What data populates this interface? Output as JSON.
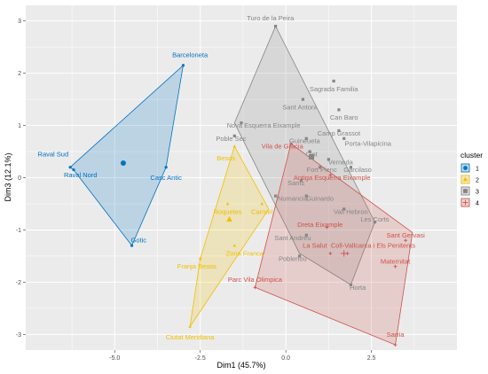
{
  "chart_data": {
    "type": "scatter",
    "title": "",
    "xlabel": "Dim1 (45.7%)",
    "ylabel": "Dim3 (12.1%)",
    "xlim": [
      -7.6,
      5.0
    ],
    "ylim": [
      -3.3,
      3.3
    ],
    "xticks": [
      -5.0,
      -2.5,
      0.0,
      2.5
    ],
    "xtick_labels": [
      "-5.0",
      "-2.5",
      "0.0",
      "2.5"
    ],
    "yticks": [
      -3,
      -2,
      -1,
      0,
      1,
      2,
      3
    ],
    "ytick_labels": [
      "-3",
      "-2",
      "-1",
      "0",
      "1",
      "2",
      "3"
    ],
    "grid": true,
    "background": "panel-grey",
    "legend": {
      "title": "cluster",
      "position": "right",
      "entries": [
        "1",
        "2",
        "3",
        "4"
      ]
    },
    "series": [
      {
        "name": "1",
        "color": "#0073C2",
        "points": [
          {
            "label": "Raval Sud",
            "x": -6.3,
            "y": 0.2,
            "lx": -6.8,
            "ly": 0.45
          },
          {
            "label": "Raval Nord",
            "x": -6.2,
            "y": 0.15,
            "lx": -6.0,
            "ly": 0.05
          },
          {
            "label": "Casc Antic",
            "x": -3.5,
            "y": 0.2,
            "lx": -3.5,
            "ly": 0.0
          },
          {
            "label": "Barceloneta",
            "x": -3.0,
            "y": 2.15,
            "lx": -2.8,
            "ly": 2.35
          },
          {
            "label": "Gotic",
            "x": -4.5,
            "y": -1.3,
            "lx": -4.3,
            "ly": -1.2
          }
        ],
        "hull": [
          [
            -6.3,
            0.2
          ],
          [
            -3.0,
            2.15
          ],
          [
            -3.5,
            0.2
          ],
          [
            -4.5,
            -1.3
          ],
          [
            -6.2,
            0.15
          ]
        ],
        "centroid": [
          -4.75,
          0.28
        ]
      },
      {
        "name": "2",
        "color": "#EFC000",
        "points": [
          {
            "label": "Besos",
            "x": -1.5,
            "y": 0.6,
            "lx": -1.75,
            "ly": 0.37
          },
          {
            "label": "Roquetes",
            "x": -1.7,
            "y": -0.5,
            "lx": -1.7,
            "ly": -0.65
          },
          {
            "label": "Carmel",
            "x": -0.7,
            "y": -0.5,
            "lx": -0.7,
            "ly": -0.65
          },
          {
            "label": "Zona Franca",
            "x": -1.5,
            "y": -1.3,
            "lx": -1.2,
            "ly": -1.45
          },
          {
            "label": "Franja Besos",
            "x": -2.5,
            "y": -1.55,
            "lx": -2.6,
            "ly": -1.7
          },
          {
            "label": "Ciutat Meridiana",
            "x": -2.8,
            "y": -2.85,
            "lx": -2.8,
            "ly": -3.05
          }
        ],
        "hull": [
          [
            -1.5,
            0.6
          ],
          [
            -0.5,
            -0.6
          ],
          [
            -2.8,
            -2.85
          ],
          [
            -2.5,
            -1.55
          ]
        ],
        "centroid": [
          -1.65,
          -0.8
        ]
      },
      {
        "name": "3",
        "color": "#868686",
        "points": [
          {
            "label": "Turo de la Peira",
            "x": -0.3,
            "y": 2.9,
            "lx": -0.45,
            "ly": 3.05
          },
          {
            "label": "Sagrada Familia",
            "x": 1.4,
            "y": 1.85,
            "lx": 1.4,
            "ly": 1.7
          },
          {
            "label": "Sant Antoni",
            "x": 0.5,
            "y": 1.5,
            "lx": 0.4,
            "ly": 1.35
          },
          {
            "label": "Can Baro",
            "x": 1.55,
            "y": 1.3,
            "lx": 1.7,
            "ly": 1.15
          },
          {
            "label": "Nova Esquerra Eixample",
            "x": -1.3,
            "y": 1.05,
            "lx": -0.65,
            "ly": 1.0
          },
          {
            "label": "Camp Grassot",
            "x": 1.55,
            "y": 0.9,
            "lx": 1.55,
            "ly": 0.85
          },
          {
            "label": "Poble Sec",
            "x": -1.5,
            "y": 0.8,
            "lx": -1.6,
            "ly": 0.75
          },
          {
            "label": "Guineueta",
            "x": 0.6,
            "y": 0.75,
            "lx": 0.55,
            "ly": 0.7
          },
          {
            "label": "Porta-Vilapicina",
            "x": 1.7,
            "y": 0.75,
            "lx": 2.4,
            "ly": 0.65
          },
          {
            "label": "Clot",
            "x": 0.7,
            "y": 0.5,
            "lx": 0.75,
            "ly": 0.45
          },
          {
            "label": "Verneda",
            "x": 1.25,
            "y": 0.35,
            "lx": 1.6,
            "ly": 0.3
          },
          {
            "label": "Fort Pienc",
            "x": 1.0,
            "y": 0.2,
            "lx": 1.05,
            "ly": 0.15
          },
          {
            "label": "Garcilaso",
            "x": 1.9,
            "y": 0.2,
            "lx": 2.1,
            "ly": 0.15
          },
          {
            "label": "Sants",
            "x": 0.45,
            "y": -0.05,
            "lx": 0.3,
            "ly": -0.1
          },
          {
            "label": "Numancia",
            "x": -0.3,
            "y": -0.35,
            "lx": 0.2,
            "ly": -0.4
          },
          {
            "label": "Guinardo",
            "x": 0.6,
            "y": -0.35,
            "lx": 1.0,
            "ly": -0.4
          },
          {
            "label": "Vall Hebron",
            "x": 1.7,
            "y": -0.6,
            "lx": 1.9,
            "ly": -0.65
          },
          {
            "label": "Les Corts",
            "x": 2.6,
            "y": -0.85,
            "lx": 2.6,
            "ly": -0.8
          },
          {
            "label": "Sant Andreu",
            "x": 0.6,
            "y": -1.1,
            "lx": 0.2,
            "ly": -1.15
          },
          {
            "label": "Poblenou",
            "x": 0.4,
            "y": -1.5,
            "lx": 0.2,
            "ly": -1.55
          },
          {
            "label": "Horta",
            "x": 1.9,
            "y": -2.05,
            "lx": 2.1,
            "ly": -2.1
          }
        ],
        "hull": [
          [
            -0.3,
            2.9
          ],
          [
            -1.5,
            1.05
          ],
          [
            0.4,
            -1.45
          ],
          [
            1.9,
            -2.05
          ],
          [
            2.6,
            -0.85
          ]
        ],
        "centroid": [
          0.75,
          0.4
        ]
      },
      {
        "name": "4",
        "color": "#CD534C",
        "points": [
          {
            "label": "Vila de Gracia",
            "x": 0.15,
            "y": 0.65,
            "lx": -0.1,
            "ly": 0.6
          },
          {
            "label": "Antiga Esquerra Eixample",
            "x": 1.3,
            "y": 0.05,
            "lx": 1.35,
            "ly": 0.0
          },
          {
            "label": "Dreta Eixample",
            "x": 1.2,
            "y": -0.95,
            "lx": 1.0,
            "ly": -0.9
          },
          {
            "label": "Sant Gervasi",
            "x": 3.5,
            "y": -1.2,
            "lx": 3.5,
            "ly": -1.1
          },
          {
            "label": "La Salut",
            "x": 1.3,
            "y": -1.45,
            "lx": 0.85,
            "ly": -1.3
          },
          {
            "label": "Coll-Vallcarca i Els Penitents",
            "x": 1.8,
            "y": -1.45,
            "lx": 2.55,
            "ly": -1.3
          },
          {
            "label": "Maternitat",
            "x": 3.2,
            "y": -1.7,
            "lx": 3.2,
            "ly": -1.6
          },
          {
            "label": "Parc Vila Olimpica",
            "x": -0.9,
            "y": -2.1,
            "lx": -0.9,
            "ly": -1.95
          },
          {
            "label": "Sarria",
            "x": 3.2,
            "y": -3.2,
            "lx": 3.2,
            "ly": -3.0
          }
        ],
        "hull": [
          [
            0.15,
            0.65
          ],
          [
            3.7,
            -1.05
          ],
          [
            3.2,
            -3.2
          ],
          [
            -0.9,
            -2.1
          ]
        ],
        "centroid": [
          1.7,
          -1.45
        ]
      }
    ]
  }
}
